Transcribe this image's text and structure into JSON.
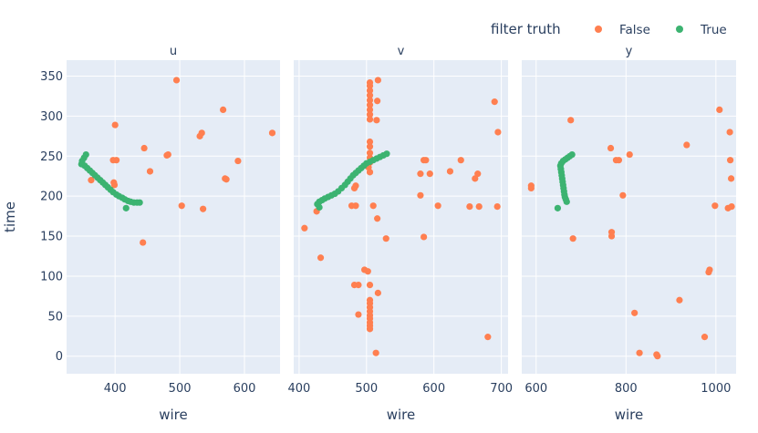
{
  "chart_data": {
    "type": "scatter",
    "legend": {
      "title": "filter truth",
      "placement": "top-right",
      "entries": [
        {
          "name": "False",
          "color": "#ff7f50"
        },
        {
          "name": "True",
          "color": "#3cb371"
        }
      ]
    },
    "y_axis": {
      "label": "time",
      "ticks": [
        0,
        50,
        100,
        150,
        200,
        250,
        300,
        350
      ],
      "range": [
        -22,
        370
      ],
      "grid": true
    },
    "panels": [
      {
        "title": "u",
        "xlabel": "wire",
        "xrange": [
          325,
          655
        ],
        "xticks": [
          400,
          500,
          600
        ],
        "series": [
          {
            "name": "False",
            "color": "#ff7f50",
            "points": [
              [
                495,
                345
              ],
              [
                400,
                289
              ],
              [
                567,
                308
              ],
              [
                534,
                279
              ],
              [
                531,
                275
              ],
              [
                643,
                279
              ],
              [
                445,
                260
              ],
              [
                482,
                252
              ],
              [
                480,
                251
              ],
              [
                397,
                245
              ],
              [
                402,
                245
              ],
              [
                590,
                244
              ],
              [
                572,
                221
              ],
              [
                570,
                222
              ],
              [
                454,
                231
              ],
              [
                363,
                220
              ],
              [
                398,
                217
              ],
              [
                399,
                214
              ],
              [
                503,
                188
              ],
              [
                536,
                184
              ],
              [
                443,
                142
              ]
            ]
          },
          {
            "name": "True",
            "color": "#3cb371",
            "points": [
              [
                355,
                252
              ],
              [
                352,
                248
              ],
              [
                349,
                244
              ],
              [
                348,
                240
              ],
              [
                353,
                238
              ],
              [
                357,
                235
              ],
              [
                361,
                232
              ],
              [
                365,
                229
              ],
              [
                369,
                226
              ],
              [
                373,
                223
              ],
              [
                377,
                220
              ],
              [
                381,
                217
              ],
              [
                385,
                214
              ],
              [
                389,
                211
              ],
              [
                393,
                208
              ],
              [
                397,
                205
              ],
              [
                402,
                202
              ],
              [
                406,
                200
              ],
              [
                411,
                198
              ],
              [
                415,
                196
              ],
              [
                420,
                194
              ],
              [
                424,
                193
              ],
              [
                429,
                192
              ],
              [
                434,
                192
              ],
              [
                438,
                192
              ],
              [
                417,
                185
              ]
            ]
          }
        ]
      },
      {
        "title": "v",
        "xlabel": "wire",
        "xrange": [
          392,
          710
        ],
        "xticks": [
          400,
          500,
          600,
          700
        ],
        "series": [
          {
            "name": "False",
            "color": "#ff7f50",
            "points": [
              [
                505,
                342
              ],
              [
                505,
                338
              ],
              [
                505,
                332
              ],
              [
                505,
                326
              ],
              [
                505,
                320
              ],
              [
                505,
                314
              ],
              [
                505,
                308
              ],
              [
                505,
                302
              ],
              [
                505,
                296
              ],
              [
                505,
                268
              ],
              [
                505,
                262
              ],
              [
                505,
                254
              ],
              [
                505,
                248
              ],
              [
                505,
                242
              ],
              [
                503,
                236
              ],
              [
                505,
                230
              ],
              [
                517,
                345
              ],
              [
                516,
                319
              ],
              [
                515,
                295
              ],
              [
                690,
                318
              ],
              [
                695,
                280
              ],
              [
                482,
                210
              ],
              [
                484,
                213
              ],
              [
                478,
                188
              ],
              [
                484,
                188
              ],
              [
                510,
                188
              ],
              [
                516,
                172
              ],
              [
                580,
                228
              ],
              [
                585,
                245
              ],
              [
                588,
                245
              ],
              [
                594,
                228
              ],
              [
                624,
                231
              ],
              [
                640,
                245
              ],
              [
                665,
                228
              ],
              [
                661,
                222
              ],
              [
                653,
                187
              ],
              [
                667,
                187
              ],
              [
                694,
                187
              ],
              [
                606,
                188
              ],
              [
                580,
                201
              ],
              [
                585,
                149
              ],
              [
                529,
                147
              ],
              [
                408,
                160
              ],
              [
                426,
                181
              ],
              [
                432,
                123
              ],
              [
                497,
                108
              ],
              [
                502,
                106
              ],
              [
                482,
                89
              ],
              [
                488,
                89
              ],
              [
                505,
                89
              ],
              [
                517,
                79
              ],
              [
                505,
                70
              ],
              [
                505,
                66
              ],
              [
                505,
                61
              ],
              [
                505,
                56
              ],
              [
                505,
                51
              ],
              [
                505,
                47
              ],
              [
                505,
                42
              ],
              [
                505,
                38
              ],
              [
                505,
                34
              ],
              [
                488,
                52
              ],
              [
                514,
                4
              ],
              [
                680,
                24
              ]
            ]
          },
          {
            "name": "True",
            "color": "#3cb371",
            "points": [
              [
                530,
                253
              ],
              [
                525,
                251
              ],
              [
                520,
                249
              ],
              [
                515,
                247
              ],
              [
                510,
                245
              ],
              [
                505,
                243
              ],
              [
                500,
                241
              ],
              [
                496,
                238
              ],
              [
                492,
                235
              ],
              [
                488,
                232
              ],
              [
                484,
                229
              ],
              [
                480,
                226
              ],
              [
                476,
                222
              ],
              [
                472,
                218
              ],
              [
                468,
                214
              ],
              [
                463,
                210
              ],
              [
                458,
                206
              ],
              [
                453,
                203
              ],
              [
                448,
                201
              ],
              [
                443,
                199
              ],
              [
                438,
                197
              ],
              [
                434,
                195
              ],
              [
                430,
                193
              ],
              [
                427,
                190
              ],
              [
                430,
                186
              ]
            ]
          }
        ]
      },
      {
        "title": "y",
        "xlabel": "wire",
        "xrange": [
          568,
          1045
        ],
        "xticks": [
          600,
          800,
          1000
        ],
        "series": [
          {
            "name": "False",
            "color": "#ff7f50",
            "points": [
              [
                589,
                210
              ],
              [
                589,
                213
              ],
              [
                677,
                295
              ],
              [
                766,
                260
              ],
              [
                808,
                252
              ],
              [
                778,
                245
              ],
              [
                784,
                245
              ],
              [
                793,
                201
              ],
              [
                768,
                155
              ],
              [
                768,
                150
              ],
              [
                682,
                147
              ],
              [
                935,
                264
              ],
              [
                1008,
                308
              ],
              [
                1031,
                280
              ],
              [
                1032,
                245
              ],
              [
                1034,
                222
              ],
              [
                998,
                188
              ],
              [
                1027,
                185
              ],
              [
                1035,
                187
              ],
              [
                984,
                105
              ],
              [
                986,
                108
              ],
              [
                919,
                70
              ],
              [
                819,
                54
              ],
              [
                975,
                24
              ],
              [
                830,
                4
              ],
              [
                868,
                2
              ],
              [
                870,
                0
              ]
            ]
          },
          {
            "name": "True",
            "color": "#3cb371",
            "points": [
              [
                680,
                252
              ],
              [
                675,
                250
              ],
              [
                670,
                248
              ],
              [
                665,
                246
              ],
              [
                660,
                244
              ],
              [
                656,
                241
              ],
              [
                654,
                238
              ],
              [
                655,
                234
              ],
              [
                656,
                230
              ],
              [
                657,
                226
              ],
              [
                658,
                222
              ],
              [
                659,
                218
              ],
              [
                660,
                214
              ],
              [
                661,
                210
              ],
              [
                662,
                206
              ],
              [
                663,
                202
              ],
              [
                664,
                199
              ],
              [
                666,
                196
              ],
              [
                668,
                193
              ],
              [
                648,
                185
              ]
            ]
          }
        ]
      }
    ]
  }
}
